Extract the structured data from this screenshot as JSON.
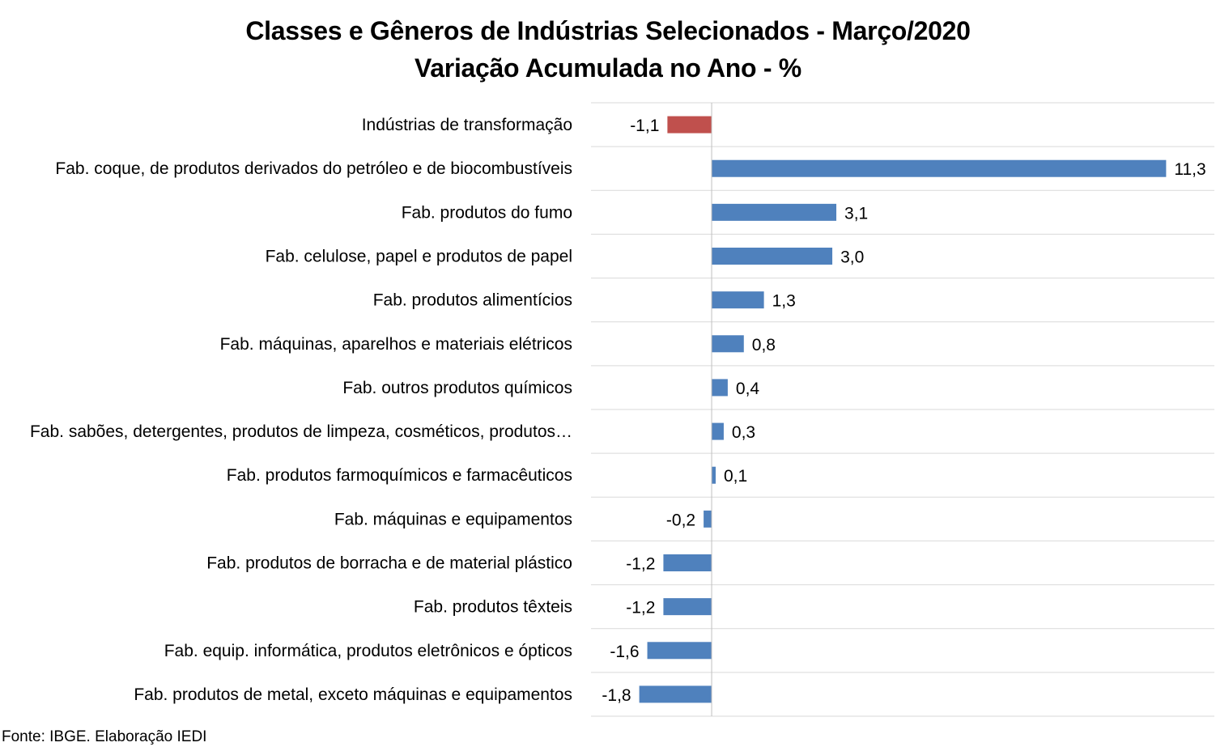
{
  "title": "Classes e Gêneros de Indústrias Selecionados - Março/2020",
  "subtitle": "Variação Acumulada no Ano - %",
  "source": "Fonte: IBGE. Elaboração IEDI",
  "colors": {
    "highlight": "#c0504d",
    "default": "#4f81bd",
    "grid": "#d9d9d9",
    "axis": "#bfbfbf"
  },
  "chart_data": {
    "type": "bar",
    "orientation": "horizontal",
    "title": "Classes e Gêneros de Indústrias Selecionados - Março/2020",
    "subtitle": "Variação Acumulada no Ano - %",
    "categories": [
      "Indústrias de transformação",
      "Fab. coque, de produtos derivados do petróleo e de biocombustíveis",
      "Fab. produtos do fumo",
      "Fab. celulose, papel e produtos de papel",
      "Fab. produtos alimentícios",
      "Fab. máquinas, aparelhos e materiais elétricos",
      "Fab. outros produtos químicos",
      "Fab. sabões, detergentes, produtos de limpeza, cosméticos, produtos…",
      "Fab. produtos farmoquímicos e farmacêuticos",
      "Fab. máquinas e equipamentos",
      "Fab. produtos de borracha e de material plástico",
      "Fab. produtos têxteis",
      "Fab. equip. informática, produtos eletrônicos e ópticos",
      "Fab. produtos de metal, exceto máquinas e equipamentos"
    ],
    "values": [
      -1.1,
      11.3,
      3.1,
      3.0,
      1.3,
      0.8,
      0.4,
      0.3,
      0.1,
      -0.2,
      -1.2,
      -1.2,
      -1.6,
      -1.8
    ],
    "value_labels": [
      "-1,1",
      "11,3",
      "3,1",
      "3,0",
      "1,3",
      "0,8",
      "0,4",
      "0,3",
      "0,1",
      "-0,2",
      "-1,2",
      "-1,2",
      "-1,6",
      "-1,8"
    ],
    "highlight_index": 0,
    "xlim": [
      -3.0,
      12.5
    ],
    "grid": true,
    "legend": "none"
  }
}
